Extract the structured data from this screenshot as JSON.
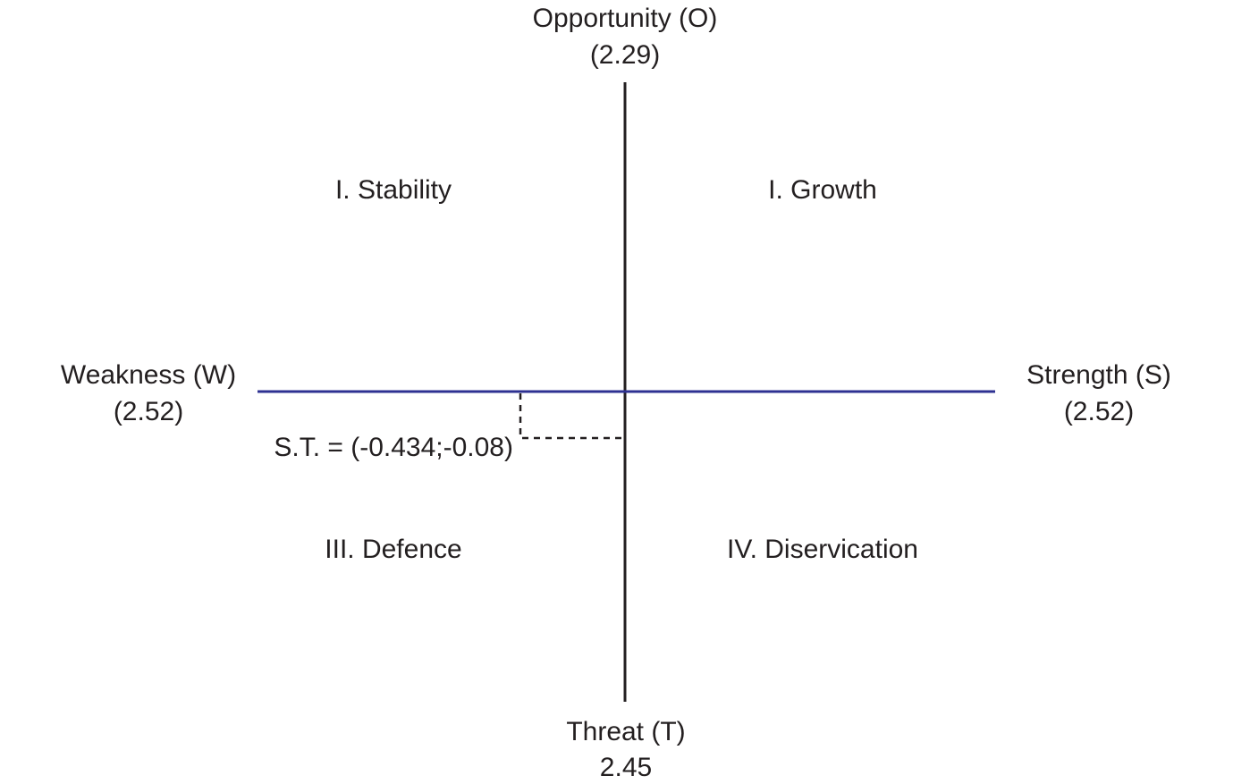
{
  "axes": {
    "top": {
      "label": "Opportunity (O)",
      "value": "(2.29)"
    },
    "left": {
      "label": "Weakness (W)",
      "value": "(2.52)"
    },
    "right": {
      "label": "Strength (S)",
      "value": "(2.52)"
    },
    "bottom": {
      "label": "Threat (T)",
      "value": "2.45"
    }
  },
  "quadrants": [
    "I. Stability",
    "I. Growth",
    "III. Defence",
    "IV. Diservication"
  ],
  "point_label": "S.T. = (-0.434;-0.08)"
}
